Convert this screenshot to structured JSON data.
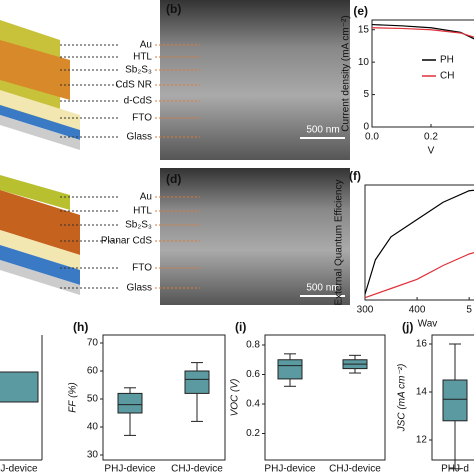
{
  "panels": {
    "a": {
      "labels": [
        "Au",
        "HTL",
        "Sb₂S₃",
        "CdS NR",
        "d-CdS",
        "FTO",
        "Glass"
      ]
    },
    "b": {
      "label": "(b)",
      "scale": "500 nm"
    },
    "c": {
      "labels": [
        "Au",
        "HTL",
        "Sb₂S₃",
        "Planar CdS",
        "FTO",
        "Glass"
      ]
    },
    "d": {
      "label": "(d)",
      "scale": "500 nm"
    },
    "e": {
      "label": "(e)",
      "ylabel": "Current density (mA cm⁻²)",
      "xlabel": "V",
      "ylim": [
        0,
        16.5
      ],
      "yticks": [
        0,
        5,
        10,
        15
      ],
      "xlim": [
        0,
        0.4
      ],
      "xticks": [
        {
          "value": 0,
          "label": "0.0"
        },
        {
          "value": 0.2,
          "label": "0.2"
        }
      ],
      "series": [
        {
          "name": "PH",
          "color": "#000000",
          "x": [
            0,
            0.1,
            0.2,
            0.3,
            0.35,
            0.4
          ],
          "values": [
            15.8,
            15.6,
            15.3,
            14.6,
            13.5,
            11.5
          ]
        },
        {
          "name": "CH",
          "color": "#e0303a",
          "x": [
            0,
            0.1,
            0.2,
            0.3,
            0.35,
            0.4
          ],
          "values": [
            15.3,
            15.2,
            15.0,
            14.5,
            13.8,
            12.5
          ]
        }
      ]
    },
    "f": {
      "label": "(f)",
      "ylabel": "External Quantum Efficiency",
      "xlabel": "Wav",
      "xlim": [
        300,
        540
      ],
      "ylim": [
        0,
        1
      ],
      "xticks": [
        300,
        400,
        {
          "value": 500,
          "label": "5"
        }
      ],
      "series": [
        {
          "color": "#000000",
          "x": [
            300,
            320,
            350,
            400,
            450,
            500,
            540
          ],
          "values": [
            0.05,
            0.35,
            0.55,
            0.7,
            0.85,
            0.95,
            0.97
          ]
        },
        {
          "color": "#e0303a",
          "x": [
            300,
            350,
            400,
            450,
            500,
            540
          ],
          "values": [
            0.02,
            0.1,
            0.18,
            0.3,
            0.4,
            0.45
          ]
        }
      ]
    },
    "g": {
      "categories": [
        "PHJ-device"
      ]
    },
    "h": {
      "label": "(h)",
      "ylabel": "FF (%)",
      "ylim": [
        30,
        70
      ],
      "yticks": [
        30,
        40,
        50,
        60,
        70
      ],
      "categories": [
        "PHJ-device",
        "CHJ-device"
      ],
      "boxes": [
        {
          "min": 37,
          "q1": 45,
          "median": 48,
          "q3": 52,
          "max": 54
        },
        {
          "min": 42,
          "q1": 52,
          "median": 57,
          "q3": 60,
          "max": 63
        }
      ]
    },
    "i": {
      "label": "(i)",
      "ylabel": "VOC (V)",
      "ylim": [
        0,
        0.8
      ],
      "yticks": [
        {
          "value": 0,
          "label": "0.0"
        },
        0.2,
        0.4,
        0.6,
        0.8
      ],
      "categories": [
        "PHJ-device",
        "CHJ-device"
      ],
      "boxes": [
        {
          "min": 0.52,
          "q1": 0.57,
          "median": 0.66,
          "q3": 0.7,
          "max": 0.74
        },
        {
          "min": 0.61,
          "q1": 0.64,
          "median": 0.67,
          "q3": 0.7,
          "max": 0.73
        }
      ]
    },
    "j": {
      "label": "(j)",
      "ylabel": "JSC (mA cm⁻²)",
      "ylim": [
        10,
        16
      ],
      "yticks": [
        10,
        12,
        14,
        16
      ],
      "categories": [
        "PHJ-d"
      ],
      "boxes": [
        {
          "min": 10.8,
          "q1": 12.8,
          "median": 13.7,
          "q3": 14.5,
          "max": 16
        }
      ]
    }
  }
}
